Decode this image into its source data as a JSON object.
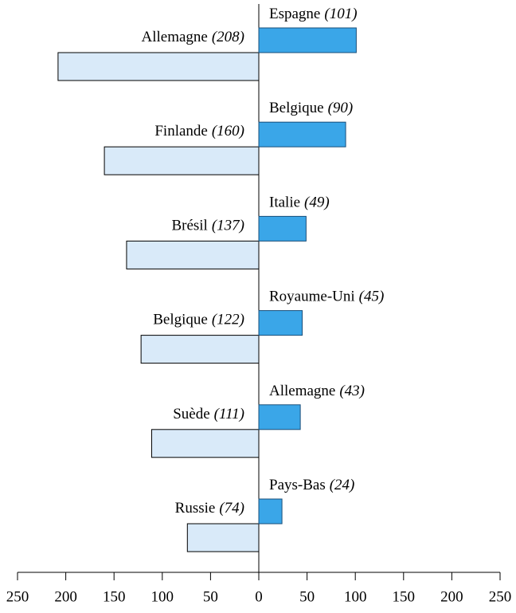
{
  "chart_data": {
    "type": "diverging-bar",
    "series": [
      {
        "side": "left",
        "color": "#d9eaf9",
        "labels": [
          "Allemagne",
          "Finlande",
          "Brésil",
          "Belgique",
          "Suède",
          "Russie"
        ],
        "values": [
          208,
          160,
          137,
          122,
          111,
          74
        ],
        "value_labels": [
          "(208)",
          "(160)",
          "(137)",
          "(122)",
          "(111)",
          "(74)"
        ]
      },
      {
        "side": "right",
        "color": "#3aa6e8",
        "labels": [
          "Espagne",
          "Belgique",
          "Italie",
          "Royaume-Uni",
          "Allemagne",
          "Pays-Bas"
        ],
        "values": [
          101,
          90,
          49,
          45,
          43,
          24
        ],
        "value_labels": [
          "(101)",
          "(90)",
          "(49)",
          "(45)",
          "(43)",
          "(24)"
        ]
      }
    ],
    "xlim": [
      -250,
      250
    ],
    "xticks": [
      {
        "value": -250,
        "label": "250"
      },
      {
        "value": -200,
        "label": "200"
      },
      {
        "value": -150,
        "label": "150"
      },
      {
        "value": -100,
        "label": "100"
      },
      {
        "value": -50,
        "label": "50"
      },
      0,
      50,
      100,
      150,
      200,
      250
    ]
  }
}
